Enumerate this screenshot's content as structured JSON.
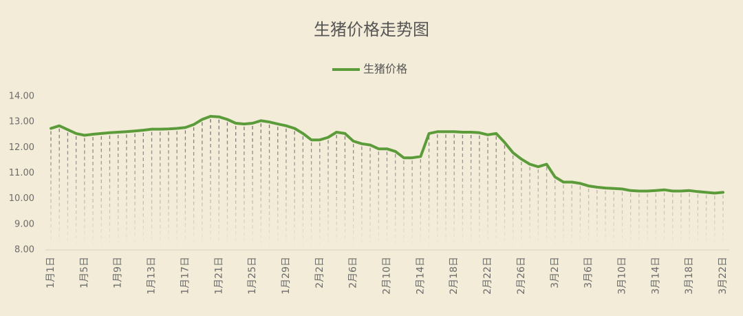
{
  "chart_data": {
    "type": "line",
    "title": "生猪价格走势图",
    "categories": [
      "1月1日",
      null,
      null,
      null,
      "1月5日",
      null,
      null,
      null,
      "1月9日",
      null,
      null,
      null,
      "1月13日",
      null,
      null,
      null,
      "1月17日",
      null,
      null,
      null,
      "1月21日",
      null,
      null,
      null,
      "1月25日",
      null,
      null,
      null,
      "1月29日",
      null,
      null,
      null,
      "2月2日",
      null,
      null,
      null,
      "2月6日",
      null,
      null,
      null,
      "2月10日",
      null,
      null,
      null,
      "2月14日",
      null,
      null,
      null,
      "2月18日",
      null,
      null,
      null,
      "2月22日",
      null,
      null,
      null,
      "2月26日",
      null,
      null,
      null,
      "3月2日",
      null,
      null,
      null,
      "3月6日",
      null,
      null,
      null,
      "3月10日",
      null,
      null,
      null,
      "3月14日",
      null,
      null,
      null,
      "3月18日",
      null,
      null,
      null,
      "3月22日"
    ],
    "series": [
      {
        "name": "生猪价格",
        "color": "#5b9b3a",
        "values": [
          12.75,
          12.85,
          12.7,
          12.55,
          12.48,
          12.52,
          12.55,
          12.58,
          12.6,
          12.62,
          12.65,
          12.68,
          12.72,
          12.72,
          12.73,
          12.75,
          12.78,
          12.9,
          13.1,
          13.22,
          13.2,
          13.1,
          12.95,
          12.92,
          12.95,
          13.05,
          13.0,
          12.92,
          12.85,
          12.75,
          12.55,
          12.3,
          12.3,
          12.4,
          12.6,
          12.55,
          12.25,
          12.15,
          12.1,
          11.95,
          11.95,
          11.85,
          11.6,
          11.6,
          11.65,
          12.55,
          12.62,
          12.62,
          12.62,
          12.6,
          12.6,
          12.58,
          12.5,
          12.55,
          12.2,
          11.8,
          11.55,
          11.35,
          11.25,
          11.35,
          10.85,
          10.65,
          10.65,
          10.6,
          10.5,
          10.45,
          10.42,
          10.4,
          10.38,
          10.32,
          10.3,
          10.3,
          10.32,
          10.35,
          10.3,
          10.3,
          10.32,
          10.28,
          10.25,
          10.22,
          10.25
        ]
      }
    ],
    "ylim": [
      8,
      14
    ],
    "yticks": [
      {
        "value": 8,
        "label": "8.00"
      },
      {
        "value": 9,
        "label": "9.00"
      },
      {
        "value": 10,
        "label": "10.00"
      },
      {
        "value": 11,
        "label": "11.00"
      },
      {
        "value": 12,
        "label": "12.00"
      },
      {
        "value": 13,
        "label": "13.00"
      },
      {
        "value": 14,
        "label": "14.00"
      }
    ],
    "legend": "top",
    "drop_lines": true
  }
}
